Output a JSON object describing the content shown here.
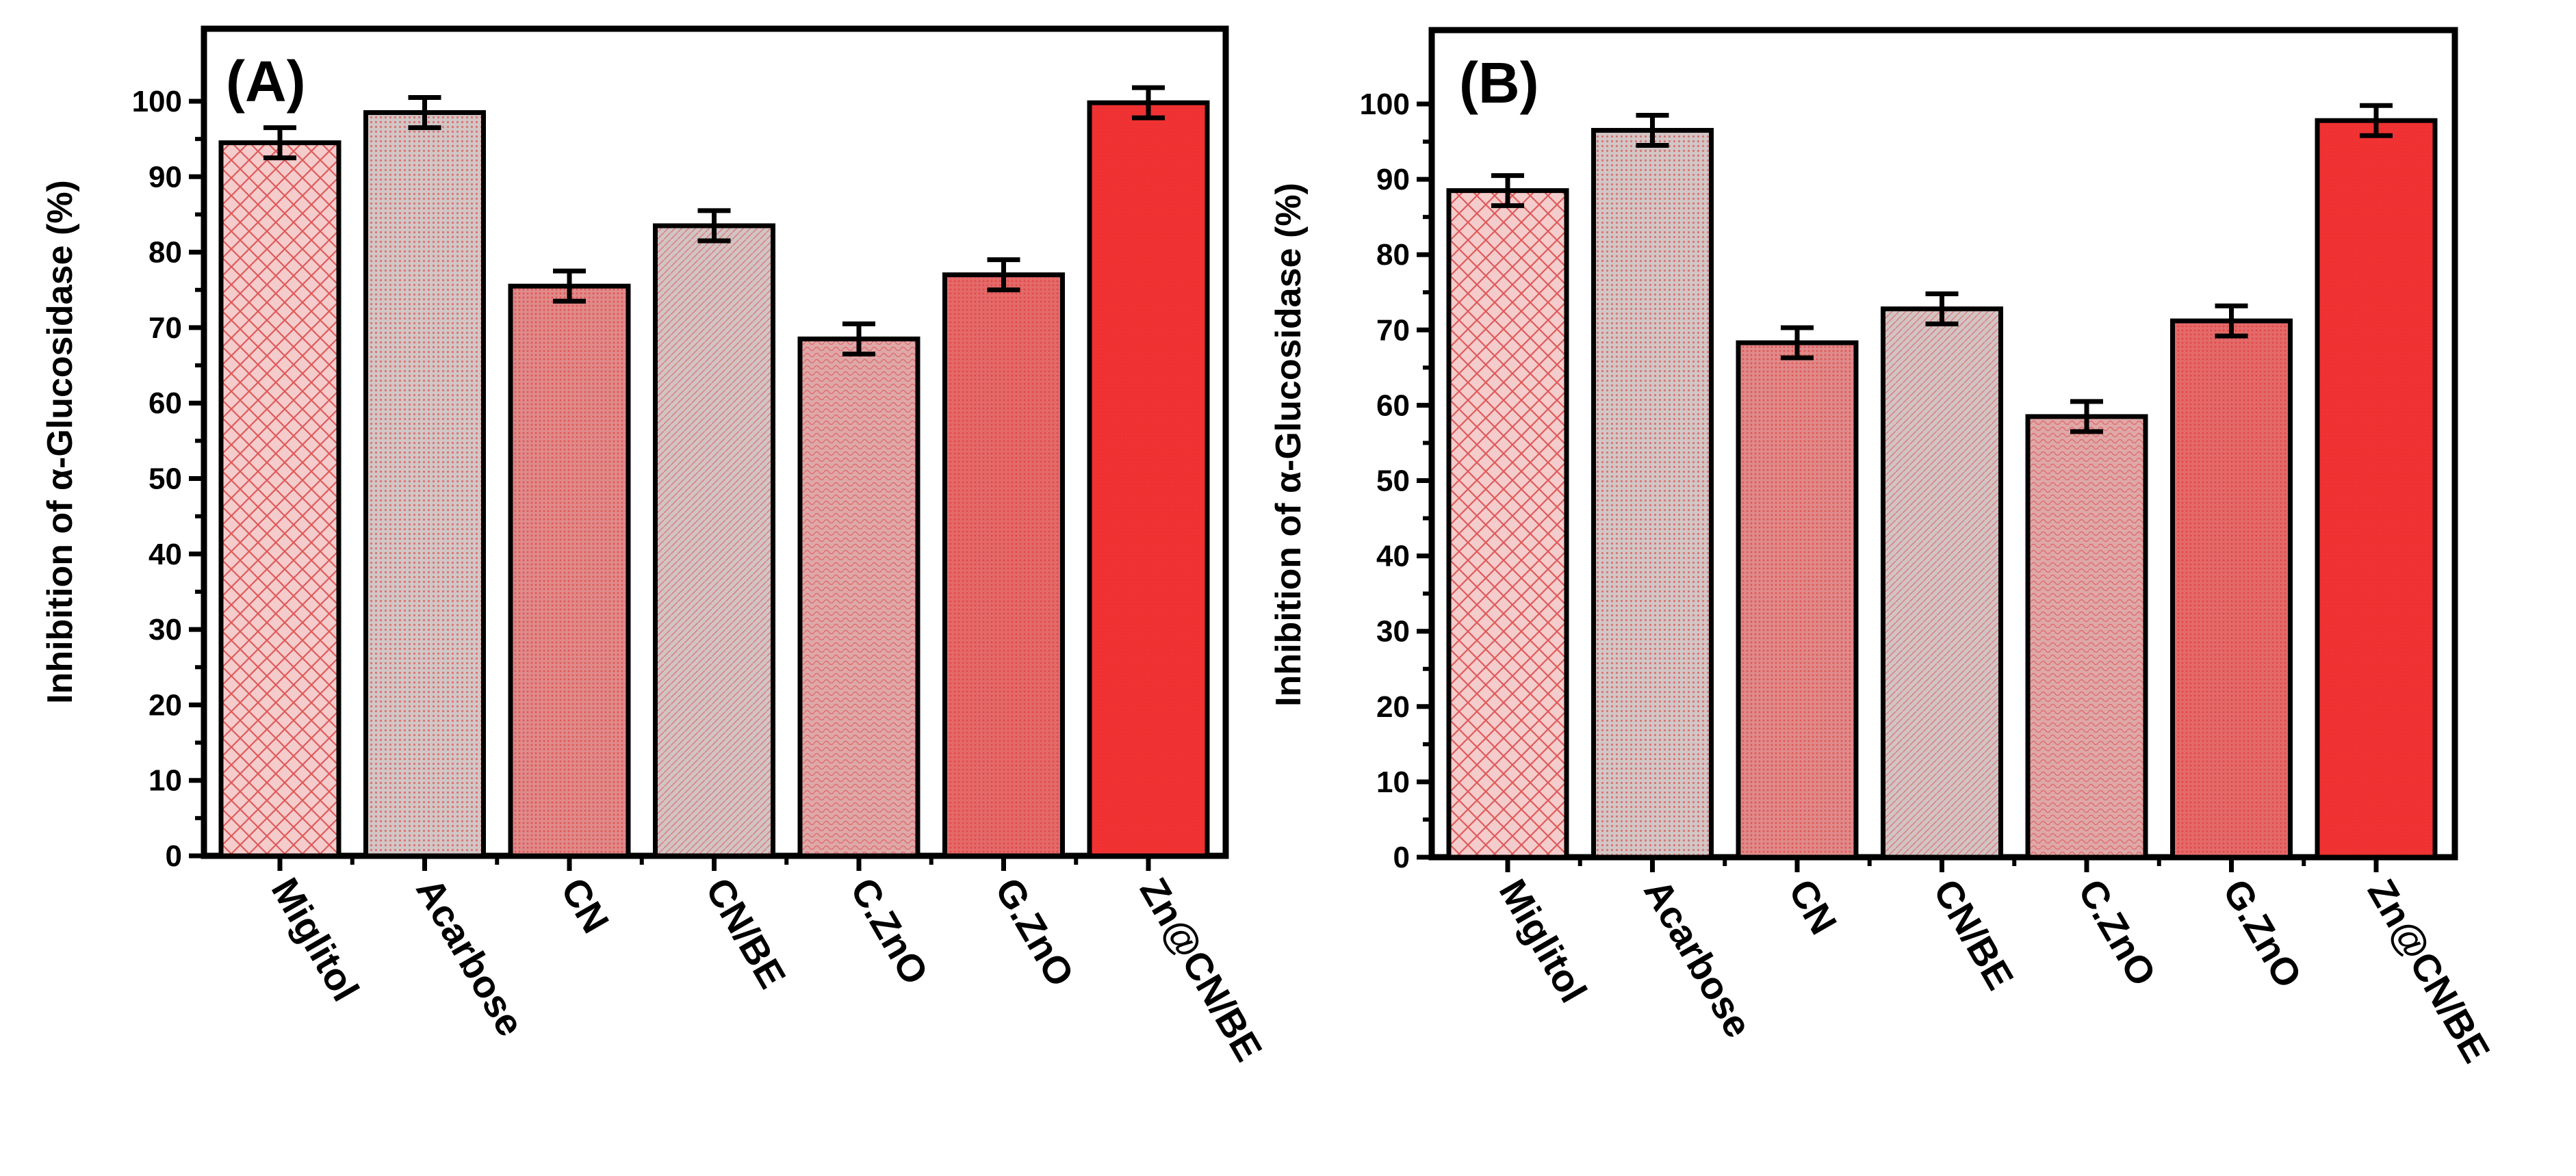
{
  "colors": {
    "miglitol_bg": "#f4cccc",
    "miglitol_line": "#e05a5a",
    "acarbose_bg": "#d2c6c6",
    "cn_bg": "#e08a8a",
    "cnbe_bg": "#d2c4c4",
    "czno_bg": "#dfa8a8",
    "gzno_bg": "#e46a6a",
    "zncnbe_bg": "#f23232",
    "dot": "#e03030",
    "axis": "#000000"
  },
  "chart_data": [
    {
      "type": "bar",
      "panel_label": "(A)",
      "categories": [
        "Miglitol",
        "Acarbose",
        "CN",
        "CN/BE",
        "C.ZnO",
        "G.ZnO",
        "Zn@CN/BE"
      ],
      "values": [
        94.5,
        98.5,
        75.5,
        83.5,
        68.5,
        77.0,
        99.8
      ],
      "errors": [
        2.0,
        2.0,
        2.0,
        2.0,
        2.0,
        2.0,
        2.0
      ],
      "ylabel": "Inhibition of α-Glucosidase (%)",
      "xlabel": "",
      "ylim": [
        0,
        105
      ],
      "yticks": [
        "0",
        "10",
        "20",
        "30",
        "40",
        "50",
        "60",
        "70",
        "80",
        "90",
        "100"
      ]
    },
    {
      "type": "bar",
      "panel_label": "(B)",
      "categories": [
        "Miglitol",
        "Acarbose",
        "CN",
        "CN/BE",
        "C.ZnO",
        "G.ZnO",
        "Zn@CN/BE"
      ],
      "values": [
        88.5,
        96.5,
        68.3,
        72.8,
        58.5,
        71.2,
        97.8
      ],
      "errors": [
        2.0,
        2.0,
        2.0,
        2.0,
        2.0,
        2.0,
        2.0
      ],
      "ylabel": "Inhibition of α-Glucosidase (%)",
      "xlabel": "",
      "ylim": [
        0,
        105
      ],
      "yticks": [
        "0",
        "10",
        "20",
        "30",
        "40",
        "50",
        "60",
        "70",
        "80",
        "90",
        "100"
      ]
    }
  ]
}
